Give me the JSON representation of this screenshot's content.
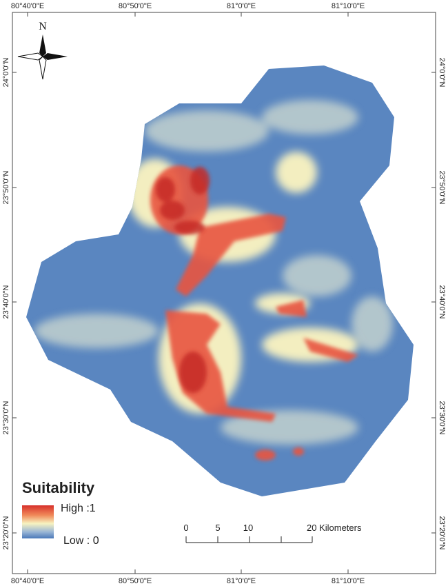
{
  "map": {
    "north_label": "N",
    "longitude_labels": [
      "80°40'0\"E",
      "80°50'0\"E",
      "81°0'0\"E",
      "81°10'0\"E"
    ],
    "latitude_labels": [
      "24°0'0\"N",
      "23°50'0\"N",
      "23°40'0\"N",
      "23°30'0\"N",
      "23°20'0\"N"
    ],
    "legend": {
      "title": "Suitability",
      "high": "High :1",
      "low": "Low : 0"
    },
    "scale_bar": [
      "0",
      "5",
      "10",
      "20 Kilometers"
    ]
  }
}
